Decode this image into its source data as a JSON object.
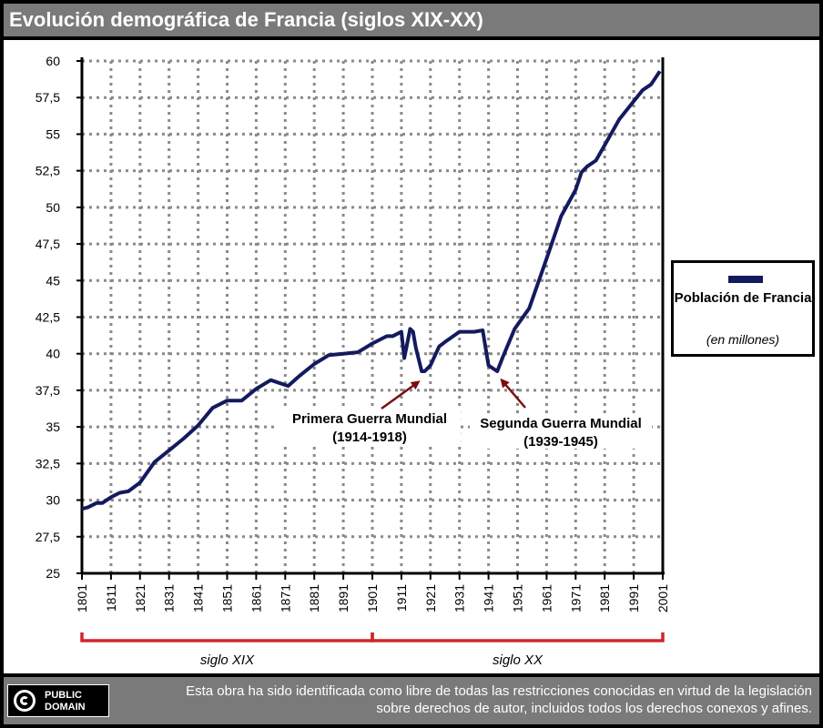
{
  "header": {
    "title": "Evolución demográfica de Francia (siglos XIX-XX)"
  },
  "legend": {
    "label": "Población de Francia",
    "unit": "(en millones)",
    "color": "#141a5e"
  },
  "footer": {
    "badge_line1": "PUBLIC",
    "badge_line2": "DOMAIN",
    "notice": "Esta obra ha sido identificada como libre de todas las restricciones conocidas en virtud de la legislación sobre derechos de autor, incluidos todos los derechos conexos y afines."
  },
  "chart_data": {
    "type": "line",
    "title": "Evolución demográfica de Francia (siglos XIX-XX)",
    "xlim": [
      1801,
      2001
    ],
    "ylim": [
      25,
      60
    ],
    "y_ticks": [
      "25",
      "27,5",
      "30",
      "32,5",
      "35",
      "37,5",
      "40",
      "42,5",
      "45",
      "47,5",
      "50",
      "52,5",
      "55",
      "57,5",
      "60"
    ],
    "x_ticks": [
      "1801",
      "1811",
      "1821",
      "1831",
      "1841",
      "1851",
      "1861",
      "1871",
      "1881",
      "1891",
      "1901",
      "1911",
      "1921",
      "1931",
      "1941",
      "1951",
      "1961",
      "1971",
      "1981",
      "1991",
      "2001"
    ],
    "grid": true,
    "legend_position": "right",
    "series": [
      {
        "name": "Población de Francia",
        "color": "#141a5e",
        "x": [
          1801,
          1803,
          1806,
          1808,
          1811,
          1814,
          1817,
          1821,
          1826,
          1831,
          1836,
          1841,
          1846,
          1851,
          1856,
          1861,
          1866,
          1872,
          1876,
          1881,
          1886,
          1891,
          1896,
          1901,
          1906,
          1908,
          1911,
          1912,
          1914,
          1915,
          1916,
          1918,
          1919,
          1921,
          1924,
          1926,
          1931,
          1936,
          1939,
          1941,
          1944,
          1946,
          1950,
          1955,
          1961,
          1966,
          1971,
          1973,
          1975,
          1978,
          1982,
          1986,
          1990,
          1994,
          1997,
          2000
        ],
        "values": [
          29.4,
          29.5,
          29.8,
          29.8,
          30.2,
          30.5,
          30.6,
          31.2,
          32.6,
          33.4,
          34.2,
          35.1,
          36.3,
          36.8,
          36.8,
          37.6,
          38.2,
          37.8,
          38.5,
          39.3,
          39.9,
          40.0,
          40.1,
          40.7,
          41.2,
          41.2,
          41.5,
          39.7,
          41.7,
          41.5,
          40.4,
          38.8,
          38.8,
          39.2,
          40.5,
          40.8,
          41.5,
          41.5,
          41.6,
          39.2,
          38.8,
          39.8,
          41.7,
          43.1,
          46.5,
          49.4,
          51.2,
          52.4,
          52.8,
          53.2,
          54.6,
          56.0,
          57.0,
          58.0,
          58.4,
          59.3
        ]
      }
    ],
    "annotations": [
      {
        "line1": "Primera Guerra Mundial",
        "line2": "(1914-1918)",
        "x": 1918,
        "y": 38.8
      },
      {
        "line1": "Segunda Guerra Mundial",
        "line2": "(1939-1945)",
        "x": 1945,
        "y": 38.8
      }
    ],
    "centuries": [
      {
        "label": "siglo XIX",
        "from": 1801,
        "to": 1901
      },
      {
        "label": "siglo XX",
        "from": 1901,
        "to": 2001
      }
    ]
  }
}
